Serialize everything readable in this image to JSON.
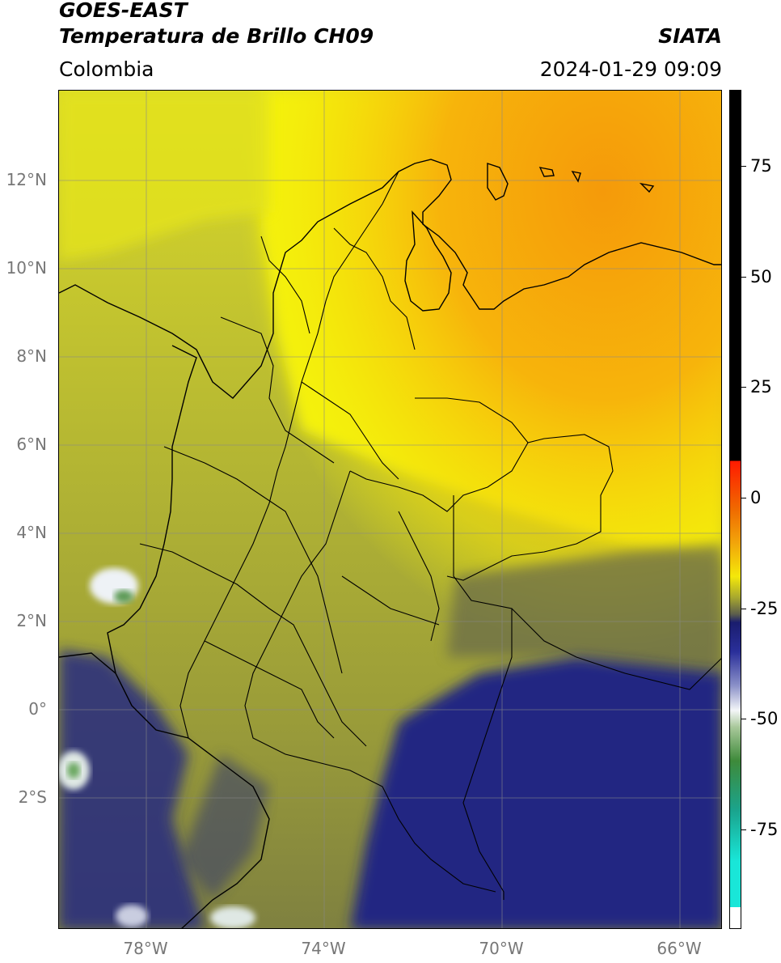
{
  "header": {
    "satellite": "GOES-EAST",
    "product": "Temperatura de Brillo CH09",
    "region": "Colombia",
    "organization": "SIATA",
    "datetime": "2024-01-29 09:09"
  },
  "map": {
    "lat_ticks": [
      {
        "value": 12,
        "label": "12°N"
      },
      {
        "value": 10,
        "label": "10°N"
      },
      {
        "value": 8,
        "label": "8°N"
      },
      {
        "value": 6,
        "label": "6°N"
      },
      {
        "value": 4,
        "label": "4°N"
      },
      {
        "value": 2,
        "label": "2°N"
      },
      {
        "value": 0,
        "label": "0°"
      },
      {
        "value": -2,
        "label": "2°S"
      }
    ],
    "lon_ticks": [
      {
        "value": -78,
        "label": "78°W"
      },
      {
        "value": -74,
        "label": "74°W"
      },
      {
        "value": -70,
        "label": "70°W"
      },
      {
        "value": -66,
        "label": "66°W"
      }
    ],
    "grid": true,
    "colors": {
      "warm": "#f9a20a",
      "yellow": "#f4f30a",
      "olive": "#a7a92e",
      "gray": "#5c5f4e",
      "navy": "#1c2280",
      "white": "#eef2f6",
      "green": "#5b9a55",
      "coast": "#000000"
    }
  },
  "colorbar": {
    "ticks": [
      {
        "value": 75,
        "label": "75"
      },
      {
        "value": 50,
        "label": "50"
      },
      {
        "value": 25,
        "label": "25"
      },
      {
        "value": 0,
        "label": "0"
      },
      {
        "value": -25,
        "label": "-25"
      },
      {
        "value": -50,
        "label": "-50"
      },
      {
        "value": -75,
        "label": "-75"
      }
    ]
  }
}
